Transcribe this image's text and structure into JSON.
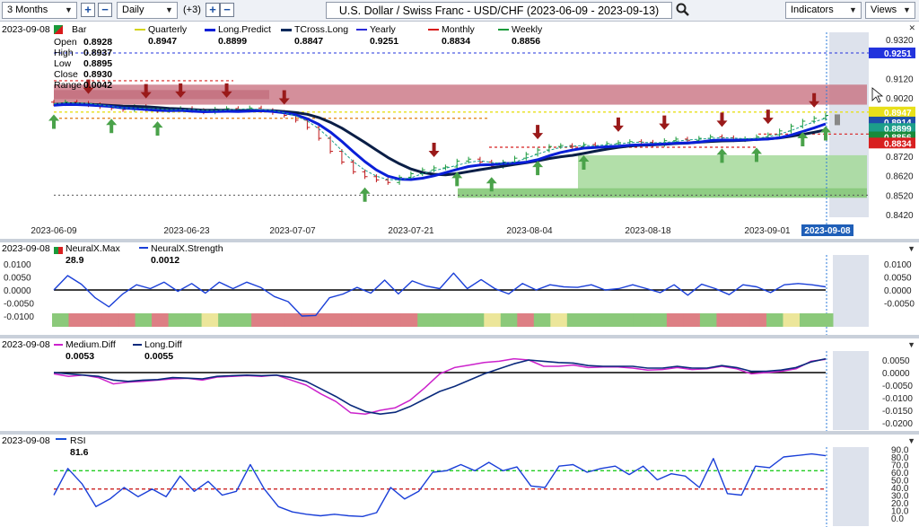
{
  "toolbar": {
    "period": "3 Months",
    "interval": "Daily",
    "extra": "(+3)",
    "title": "U.S. Dollar / Swiss Franc - USD/CHF (2023-06-09 - 2023-09-13)",
    "indicators_label": "Indicators",
    "views_label": "Views"
  },
  "main": {
    "date": "2023-09-08",
    "bar_label": "Bar",
    "ohlc": [
      {
        "k": "Open",
        "v": "0.8928"
      },
      {
        "k": "High",
        "v": "0.8937"
      },
      {
        "k": "Low",
        "v": "0.8895"
      },
      {
        "k": "Close",
        "v": "0.8930"
      },
      {
        "k": "Range",
        "v": "0.0042"
      }
    ],
    "legend": [
      {
        "name": "Quarterly",
        "value": "0.8947",
        "color": "#d4d41a"
      },
      {
        "name": "Long.Predict",
        "value": "0.8899",
        "color": "#0a1fd8"
      },
      {
        "name": "TCross.Long",
        "value": "0.8847",
        "color": "#0a2a5c"
      },
      {
        "name": "Yearly",
        "value": "0.9251",
        "color": "#2a2ad8"
      },
      {
        "name": "Monthly",
        "value": "0.8834",
        "color": "#d81a1a"
      },
      {
        "name": "Weekly",
        "value": "0.8856",
        "color": "#1a9a3a"
      }
    ],
    "yticks": [
      "0.9320",
      "0.9120",
      "0.9020",
      "0.8720",
      "0.8620",
      "0.8520",
      "0.8420"
    ],
    "xticks": [
      "2023-06-09",
      "2023-06-23",
      "2023-07-07",
      "2023-07-21",
      "2023-08-04",
      "2023-08-18",
      "2023-09-01"
    ],
    "current_date": "2023-09-08",
    "price_tags": [
      {
        "value": "0.9251",
        "color": "#2233dd"
      },
      {
        "value": "0.8947",
        "color": "#e8e01a"
      },
      {
        "value": "0.8914",
        "color": "#1f4fa8"
      },
      {
        "value": "0.8899",
        "color": "#1c9e8a"
      },
      {
        "value": "0.8856",
        "color": "#1a8a3a"
      },
      {
        "value": "0.8834",
        "color": "#d82020"
      }
    ]
  },
  "neural": {
    "date": "2023-09-08",
    "legend": [
      {
        "name": "NeuralX.Max",
        "value": "28.9"
      },
      {
        "name": "NeuralX.Strength",
        "value": "0.0012"
      }
    ],
    "yticks": [
      "0.0100",
      "0.0050",
      "0.0000",
      "-0.0050",
      "-0.0100"
    ],
    "strength": [
      0.0,
      0.0055,
      0.0022,
      -0.003,
      -0.0065,
      -0.0015,
      0.002,
      0.0005,
      0.003,
      -0.0005,
      0.0025,
      -0.0012,
      0.003,
      0.0005,
      0.003,
      0.001,
      -0.0025,
      -0.0045,
      -0.01,
      -0.0098,
      -0.003,
      -0.0015,
      0.001,
      -0.0012,
      0.0038,
      -0.0015,
      0.0035,
      0.0015,
      0.0005,
      0.0065,
      0.0005,
      0.004,
      0.0005,
      -0.0015,
      0.0025,
      0.0,
      0.002,
      0.0012,
      0.001,
      0.002,
      0.0,
      0.0005,
      0.002,
      0.0005,
      -0.001,
      0.002,
      -0.002,
      0.0022,
      0.0005,
      -0.0018,
      0.002,
      0.0012,
      -0.001,
      0.002,
      0.0025,
      0.002,
      0.0012
    ],
    "segments": [
      "g",
      "r",
      "r",
      "r",
      "r",
      "g",
      "r",
      "g",
      "g",
      "y",
      "g",
      "g",
      "r",
      "r",
      "r",
      "r",
      "r",
      "r",
      "r",
      "r",
      "r",
      "r",
      "g",
      "g",
      "g",
      "g",
      "y",
      "g",
      "r",
      "g",
      "y",
      "g",
      "g",
      "g",
      "g",
      "g",
      "g",
      "r",
      "r",
      "g",
      "r",
      "r",
      "r",
      "g",
      "y",
      "g",
      "g"
    ]
  },
  "diff": {
    "date": "2023-09-08",
    "legend": [
      {
        "name": "Medium.Diff",
        "value": "0.0053",
        "color": "#cc22cc"
      },
      {
        "name": "Long.Diff",
        "value": "0.0055",
        "color": "#0a2a7c"
      }
    ],
    "yticks": [
      "0.0050",
      "0.0000",
      "-0.0050",
      "-0.0100",
      "-0.0150",
      "-0.0200"
    ],
    "medium": [
      -0.0005,
      -0.0015,
      -0.001,
      -0.002,
      -0.0045,
      -0.0038,
      -0.0035,
      -0.003,
      -0.0025,
      -0.0023,
      -0.003,
      -0.0018,
      -0.0015,
      -0.0012,
      -0.0015,
      -0.001,
      -0.003,
      -0.005,
      -0.0085,
      -0.0115,
      -0.016,
      -0.0165,
      -0.015,
      -0.014,
      -0.011,
      -0.006,
      -0.0005,
      0.002,
      0.003,
      0.004,
      0.0045,
      0.0055,
      0.005,
      0.0025,
      0.0025,
      0.003,
      0.002,
      0.0022,
      0.0022,
      0.0018,
      0.001,
      0.0012,
      0.002,
      0.0012,
      0.0015,
      0.0025,
      0.0015,
      -0.0005,
      0.0,
      0.0005,
      0.0015,
      0.0045,
      0.0053
    ],
    "long": [
      0.0,
      -0.0005,
      -0.001,
      -0.0015,
      -0.003,
      -0.0035,
      -0.003,
      -0.0028,
      -0.002,
      -0.0022,
      -0.0025,
      -0.0015,
      -0.0012,
      -0.001,
      -0.0012,
      -0.001,
      -0.002,
      -0.0035,
      -0.0065,
      -0.0095,
      -0.013,
      -0.0155,
      -0.0165,
      -0.0158,
      -0.0135,
      -0.0105,
      -0.0075,
      -0.0055,
      -0.003,
      -0.0005,
      0.0015,
      0.0035,
      0.005,
      0.0045,
      0.004,
      0.0038,
      0.0028,
      0.0025,
      0.0025,
      0.0025,
      0.0018,
      0.0018,
      0.0025,
      0.0018,
      0.0018,
      0.0028,
      0.002,
      0.0005,
      0.0005,
      0.001,
      0.002,
      0.0042,
      0.0055
    ]
  },
  "rsi": {
    "date": "2023-09-08",
    "label": "RSI",
    "value": "81.6",
    "yticks": [
      "90.0",
      "80.0",
      "70.0",
      "60.0",
      "50.0",
      "40.0",
      "30.0",
      "20.0",
      "10.0",
      "0.0"
    ],
    "levels": [
      {
        "value": 62,
        "color": "#22cc22"
      },
      {
        "value": 38,
        "color": "#cc2222"
      }
    ],
    "values": [
      30,
      65,
      45,
      15,
      25,
      40,
      28,
      38,
      28,
      55,
      35,
      48,
      30,
      35,
      70,
      38,
      15,
      8,
      5,
      3,
      5,
      3,
      2,
      7,
      40,
      25,
      35,
      60,
      62,
      70,
      62,
      73,
      62,
      67,
      42,
      40,
      68,
      70,
      60,
      65,
      68,
      57,
      68,
      50,
      58,
      55,
      40,
      78,
      32,
      30,
      68,
      66,
      80,
      82,
      84,
      81.6
    ]
  }
}
